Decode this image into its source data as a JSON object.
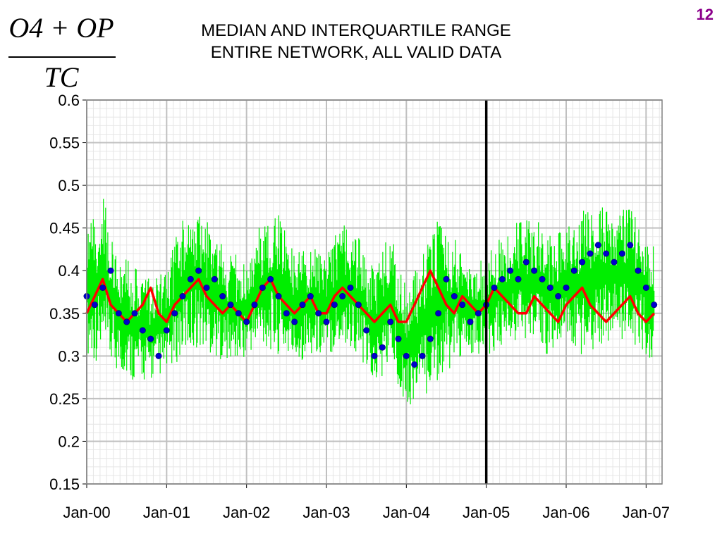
{
  "slide": {
    "number": "12",
    "formula": {
      "numerator": "O4 + OP",
      "denominator": "TC"
    },
    "title_line1": "MEDIAN AND INTERQUARTILE RANGE",
    "title_line2": "ENTIRE NETWORK, ALL VALID DATA"
  },
  "chart_data": {
    "type": "line",
    "title": "MEDIAN AND INTERQUARTILE RANGE ENTIRE NETWORK, ALL VALID DATA",
    "xlabel": "",
    "ylabel": "",
    "x_ticks": [
      "Jan-00",
      "Jan-01",
      "Jan-02",
      "Jan-03",
      "Jan-04",
      "Jan-05",
      "Jan-06",
      "Jan-07"
    ],
    "xlim": [
      0,
      7.2
    ],
    "y_ticks": [
      "0.15",
      "0.2",
      "0.25",
      "0.3",
      "0.35",
      "0.4",
      "0.45",
      "0.5",
      "0.55",
      "0.6"
    ],
    "ylim": [
      0.15,
      0.6
    ],
    "grid": true,
    "minor_grid": true,
    "legend": "none",
    "vertical_marker_x": 5.0,
    "colors": {
      "range": "#00ee00",
      "line": "#ff0000",
      "points": "#0000cc",
      "marker": "#000000",
      "grid": "#c0c0c0",
      "slide_number": "#8b008b"
    },
    "series": [
      {
        "style": "band",
        "x": [
          0.0,
          0.2,
          0.4,
          0.6,
          0.8,
          1.0,
          1.2,
          1.4,
          1.6,
          1.8,
          2.0,
          2.2,
          2.4,
          2.6,
          2.8,
          3.0,
          3.2,
          3.4,
          3.6,
          3.8,
          4.0,
          4.2,
          4.4,
          4.6,
          4.8,
          5.0,
          5.2,
          5.4,
          5.6,
          5.8,
          6.0,
          6.2,
          6.4,
          6.6,
          6.8,
          7.0,
          7.1
        ],
        "low": [
          0.3,
          0.29,
          0.28,
          0.27,
          0.27,
          0.28,
          0.3,
          0.31,
          0.3,
          0.29,
          0.3,
          0.31,
          0.3,
          0.29,
          0.3,
          0.3,
          0.31,
          0.3,
          0.26,
          0.29,
          0.24,
          0.25,
          0.27,
          0.29,
          0.3,
          0.3,
          0.31,
          0.32,
          0.31,
          0.3,
          0.31,
          0.3,
          0.31,
          0.32,
          0.31,
          0.3,
          0.29
        ],
        "high": [
          0.45,
          0.49,
          0.42,
          0.41,
          0.39,
          0.4,
          0.47,
          0.48,
          0.44,
          0.42,
          0.42,
          0.46,
          0.47,
          0.42,
          0.43,
          0.42,
          0.46,
          0.44,
          0.4,
          0.45,
          0.38,
          0.42,
          0.46,
          0.44,
          0.4,
          0.42,
          0.44,
          0.46,
          0.46,
          0.45,
          0.45,
          0.47,
          0.48,
          0.47,
          0.48,
          0.45,
          0.43
        ]
      },
      {
        "style": "line",
        "x": [
          0.0,
          0.1,
          0.2,
          0.3,
          0.4,
          0.5,
          0.6,
          0.7,
          0.8,
          0.9,
          1.0,
          1.1,
          1.2,
          1.3,
          1.4,
          1.5,
          1.6,
          1.7,
          1.8,
          1.9,
          2.0,
          2.1,
          2.2,
          2.3,
          2.4,
          2.5,
          2.6,
          2.7,
          2.8,
          2.9,
          3.0,
          3.1,
          3.2,
          3.3,
          3.4,
          3.5,
          3.6,
          3.7,
          3.8,
          3.9,
          4.0,
          4.1,
          4.2,
          4.3,
          4.4,
          4.5,
          4.6,
          4.7,
          4.8,
          4.9,
          5.0,
          5.1,
          5.2,
          5.3,
          5.4,
          5.5,
          5.6,
          5.7,
          5.8,
          5.9,
          6.0,
          6.1,
          6.2,
          6.3,
          6.4,
          6.5,
          6.6,
          6.7,
          6.8,
          6.9,
          7.0,
          7.1
        ],
        "y": [
          0.35,
          0.37,
          0.39,
          0.36,
          0.35,
          0.34,
          0.35,
          0.36,
          0.38,
          0.35,
          0.34,
          0.36,
          0.37,
          0.38,
          0.39,
          0.37,
          0.36,
          0.35,
          0.36,
          0.35,
          0.34,
          0.36,
          0.38,
          0.39,
          0.37,
          0.36,
          0.35,
          0.36,
          0.37,
          0.35,
          0.35,
          0.37,
          0.38,
          0.37,
          0.36,
          0.35,
          0.34,
          0.35,
          0.36,
          0.34,
          0.34,
          0.36,
          0.38,
          0.4,
          0.38,
          0.36,
          0.35,
          0.37,
          0.36,
          0.35,
          0.36,
          0.38,
          0.37,
          0.36,
          0.35,
          0.35,
          0.37,
          0.36,
          0.35,
          0.34,
          0.36,
          0.37,
          0.38,
          0.36,
          0.35,
          0.34,
          0.35,
          0.36,
          0.37,
          0.35,
          0.34,
          0.35
        ]
      },
      {
        "style": "points",
        "x": [
          0.0,
          0.1,
          0.2,
          0.3,
          0.4,
          0.5,
          0.6,
          0.7,
          0.8,
          0.9,
          1.0,
          1.1,
          1.2,
          1.3,
          1.4,
          1.5,
          1.6,
          1.7,
          1.8,
          1.9,
          2.0,
          2.1,
          2.2,
          2.3,
          2.4,
          2.5,
          2.6,
          2.7,
          2.8,
          2.9,
          3.0,
          3.1,
          3.2,
          3.3,
          3.4,
          3.5,
          3.6,
          3.7,
          3.8,
          3.9,
          4.0,
          4.1,
          4.2,
          4.3,
          4.4,
          4.5,
          4.6,
          4.7,
          4.8,
          4.9,
          5.0,
          5.1,
          5.2,
          5.3,
          5.4,
          5.5,
          5.6,
          5.7,
          5.8,
          5.9,
          6.0,
          6.1,
          6.2,
          6.3,
          6.4,
          6.5,
          6.6,
          6.7,
          6.8,
          6.9,
          7.0,
          7.1
        ],
        "y": [
          0.37,
          0.36,
          0.38,
          0.4,
          0.35,
          0.34,
          0.35,
          0.33,
          0.32,
          0.3,
          0.33,
          0.35,
          0.37,
          0.39,
          0.4,
          0.38,
          0.39,
          0.37,
          0.36,
          0.35,
          0.34,
          0.36,
          0.38,
          0.39,
          0.37,
          0.35,
          0.34,
          0.36,
          0.37,
          0.35,
          0.34,
          0.36,
          0.37,
          0.38,
          0.36,
          0.33,
          0.3,
          0.31,
          0.34,
          0.32,
          0.3,
          0.29,
          0.3,
          0.32,
          0.35,
          0.39,
          0.37,
          0.36,
          0.34,
          0.35,
          0.36,
          0.38,
          0.39,
          0.4,
          0.39,
          0.41,
          0.4,
          0.39,
          0.38,
          0.37,
          0.38,
          0.4,
          0.41,
          0.42,
          0.43,
          0.42,
          0.41,
          0.42,
          0.43,
          0.4,
          0.38,
          0.36
        ]
      }
    ]
  }
}
